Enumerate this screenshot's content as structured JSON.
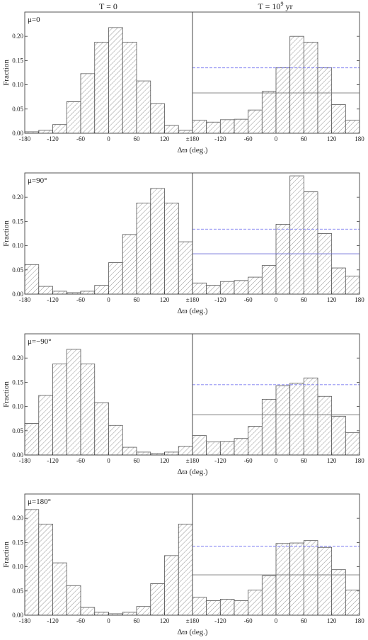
{
  "column_titles": [
    "T = 0",
    "T = 10",
    "9",
    "yr"
  ],
  "tick_labels": {
    "x_left": [
      "-180",
      "-120",
      "-60",
      "0",
      "60",
      "120",
      "±180"
    ],
    "x_right": [
      "-120",
      "-60",
      "0",
      "60",
      "120",
      "180"
    ],
    "y": [
      "0.00",
      "0.05",
      "0.10",
      "0.15",
      "0.20"
    ]
  },
  "colors": {
    "bar_stroke": "#555555",
    "hatch": "#8a8a8a",
    "solid_line_dark": "#707070",
    "solid_line_blue": "#6a6ad8",
    "dashed_line": "#7a7af0"
  },
  "chart_data": [
    {
      "type": "bar",
      "panel": "row1-left",
      "label": "μ=0",
      "ylabel": "Fraction",
      "xlabel": "Δϖ (deg.)",
      "xlim": [
        -180,
        180
      ],
      "ylim": [
        0,
        0.25
      ],
      "bin_width": 30,
      "bin_starts": [
        -180,
        -150,
        -120,
        -90,
        -60,
        -30,
        0,
        30,
        60,
        90,
        120,
        150
      ],
      "values": [
        0.003,
        0.006,
        0.018,
        0.065,
        0.123,
        0.188,
        0.218,
        0.188,
        0.108,
        0.061,
        0.016,
        0.006
      ]
    },
    {
      "type": "bar",
      "panel": "row1-right",
      "xlabel": "Δϖ (deg.)",
      "xlim": [
        -180,
        180
      ],
      "ylim": [
        0,
        0.25
      ],
      "bin_width": 30,
      "bin_starts": [
        -180,
        -150,
        -120,
        -90,
        -60,
        -30,
        0,
        30,
        60,
        90,
        120,
        150
      ],
      "values": [
        0.027,
        0.023,
        0.028,
        0.029,
        0.048,
        0.086,
        0.135,
        0.2,
        0.188,
        0.135,
        0.059,
        0.027
      ],
      "reference_lines": [
        {
          "y": 0.0833,
          "style": "solid",
          "color": "#707070"
        },
        {
          "y": 0.135,
          "style": "dashed",
          "color": "#7a7af0"
        }
      ]
    },
    {
      "type": "bar",
      "panel": "row2-left",
      "label": "μ=90°",
      "ylabel": "Fraction",
      "xlabel": "Δϖ (deg.)",
      "xlim": [
        -180,
        180
      ],
      "ylim": [
        0,
        0.25
      ],
      "bin_width": 30,
      "bin_starts": [
        -180,
        -150,
        -120,
        -90,
        -60,
        -30,
        0,
        30,
        60,
        90,
        120,
        150
      ],
      "values": [
        0.061,
        0.016,
        0.006,
        0.003,
        0.006,
        0.018,
        0.065,
        0.123,
        0.188,
        0.218,
        0.188,
        0.108
      ]
    },
    {
      "type": "bar",
      "panel": "row2-right",
      "xlabel": "Δϖ (deg.)",
      "xlim": [
        -180,
        180
      ],
      "ylim": [
        0,
        0.25
      ],
      "bin_width": 30,
      "bin_starts": [
        -180,
        -150,
        -120,
        -90,
        -60,
        -30,
        0,
        30,
        60,
        90,
        120,
        150
      ],
      "values": [
        0.023,
        0.018,
        0.026,
        0.028,
        0.035,
        0.059,
        0.144,
        0.244,
        0.211,
        0.125,
        0.054,
        0.037
      ],
      "reference_lines": [
        {
          "y": 0.0833,
          "style": "solid",
          "color": "#6a6ad8"
        },
        {
          "y": 0.134,
          "style": "dashed",
          "color": "#7a7af0"
        }
      ]
    },
    {
      "type": "bar",
      "panel": "row3-left",
      "label": "μ=−90°",
      "ylabel": "Fraction",
      "xlabel": "Δϖ (deg.)",
      "xlim": [
        -180,
        180
      ],
      "ylim": [
        0,
        0.25
      ],
      "bin_width": 30,
      "bin_starts": [
        -180,
        -150,
        -120,
        -90,
        -60,
        -30,
        0,
        30,
        60,
        90,
        120,
        150
      ],
      "values": [
        0.065,
        0.123,
        0.188,
        0.218,
        0.188,
        0.108,
        0.061,
        0.016,
        0.006,
        0.003,
        0.006,
        0.018
      ]
    },
    {
      "type": "bar",
      "panel": "row3-right",
      "xlabel": "Δϖ (deg.)",
      "xlim": [
        -180,
        180
      ],
      "ylim": [
        0,
        0.25
      ],
      "bin_width": 30,
      "bin_starts": [
        -180,
        -150,
        -120,
        -90,
        -60,
        -30,
        0,
        30,
        60,
        90,
        120,
        150
      ],
      "values": [
        0.04,
        0.027,
        0.028,
        0.034,
        0.059,
        0.115,
        0.143,
        0.148,
        0.159,
        0.121,
        0.08,
        0.046
      ],
      "reference_lines": [
        {
          "y": 0.0833,
          "style": "solid",
          "color": "#707070"
        },
        {
          "y": 0.145,
          "style": "dashed",
          "color": "#7a7af0"
        }
      ]
    },
    {
      "type": "bar",
      "panel": "row4-left",
      "label": "μ=180°",
      "ylabel": "Fraction",
      "xlabel": "Δϖ (deg.)",
      "xlim": [
        -180,
        180
      ],
      "ylim": [
        0,
        0.25
      ],
      "bin_width": 30,
      "bin_starts": [
        -180,
        -150,
        -120,
        -90,
        -60,
        -30,
        0,
        30,
        60,
        90,
        120,
        150
      ],
      "values": [
        0.218,
        0.188,
        0.108,
        0.061,
        0.016,
        0.006,
        0.003,
        0.006,
        0.018,
        0.065,
        0.123,
        0.188
      ]
    },
    {
      "type": "bar",
      "panel": "row4-right",
      "xlabel": "Δϖ (deg.)",
      "xlim": [
        -180,
        180
      ],
      "ylim": [
        0,
        0.25
      ],
      "bin_width": 30,
      "bin_starts": [
        -180,
        -150,
        -120,
        -90,
        -60,
        -30,
        0,
        30,
        60,
        90,
        120,
        150
      ],
      "values": [
        0.037,
        0.03,
        0.033,
        0.03,
        0.052,
        0.081,
        0.148,
        0.149,
        0.154,
        0.14,
        0.094,
        0.052
      ],
      "reference_lines": [
        {
          "y": 0.0833,
          "style": "solid",
          "color": "#707070"
        },
        {
          "y": 0.142,
          "style": "dashed",
          "color": "#7a7af0"
        }
      ]
    }
  ]
}
